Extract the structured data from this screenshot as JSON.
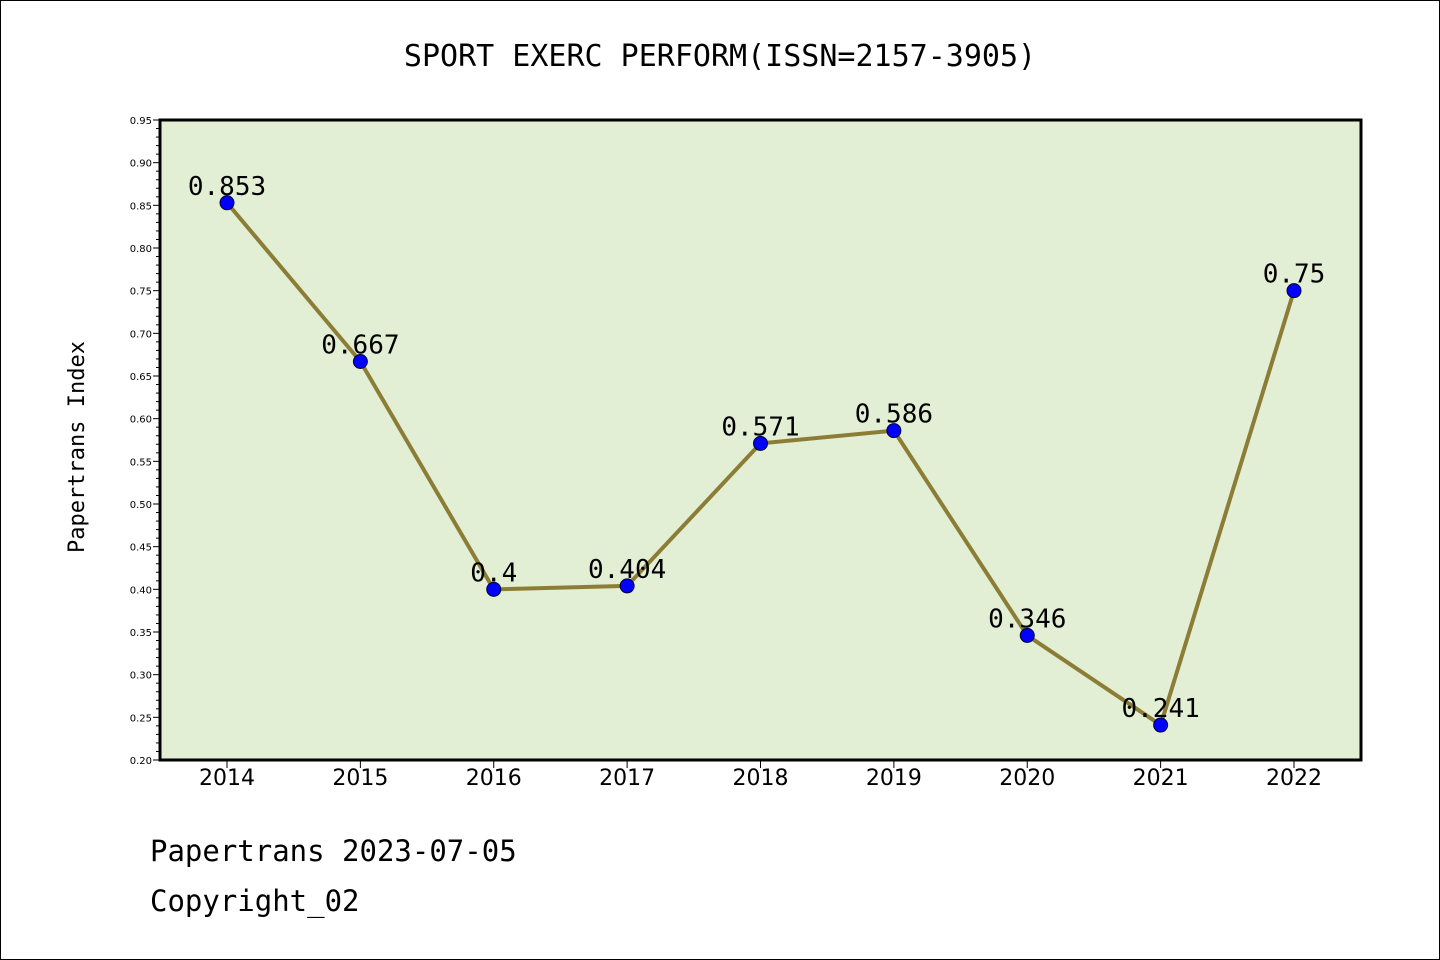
{
  "chart_data": {
    "type": "line",
    "title": "SPORT EXERC PERFORM(ISSN=2157-3905)",
    "xlabel": "",
    "ylabel": "Papertrans Index",
    "categories": [
      "2014",
      "2015",
      "2016",
      "2017",
      "2018",
      "2019",
      "2020",
      "2021",
      "2022"
    ],
    "values": [
      0.853,
      0.667,
      0.4,
      0.404,
      0.571,
      0.586,
      0.346,
      0.241,
      0.75
    ],
    "data_labels": [
      "0.853",
      "0.667",
      "0.4",
      "0.404",
      "0.571",
      "0.586",
      "0.346",
      "0.241",
      "0.75"
    ],
    "ylim": [
      0.2,
      0.95
    ],
    "yticks": [
      "0.20",
      "0.25",
      "0.30",
      "0.35",
      "0.40",
      "0.45",
      "0.50",
      "0.55",
      "0.60",
      "0.65",
      "0.70",
      "0.75",
      "0.80",
      "0.85",
      "0.90",
      "0.95"
    ],
    "grid": false,
    "colors": {
      "plot_bg": "#e2efd5",
      "line": "#8b7d35",
      "marker": "#0000ff"
    }
  },
  "footer": {
    "line1": "Papertrans 2023-07-05",
    "line2": "Copyright_02"
  }
}
